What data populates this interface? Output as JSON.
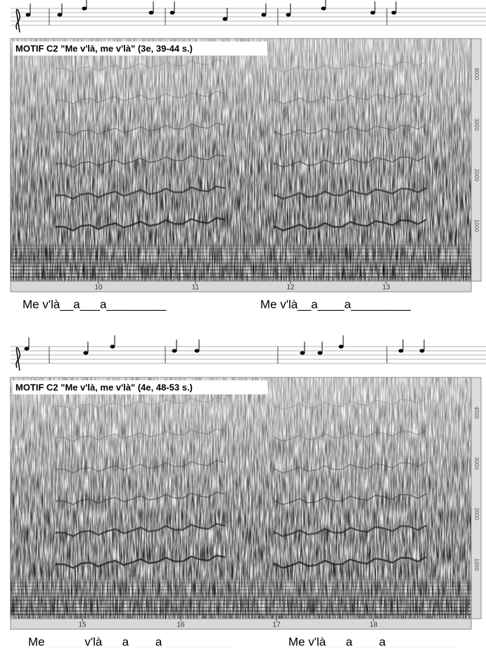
{
  "panels": [
    {
      "title": "MOTIF C2 \"Me v'là, me v'là\" (3e, 39-44 s.)",
      "time_ticks": [
        "10",
        "11",
        "12",
        "13"
      ],
      "freq_ticks": [
        "4000",
        "3000",
        "2000",
        "1000"
      ],
      "lyrics": [
        "Me v'là__a___a_________",
        "Me v'là__a____a_________"
      ]
    },
    {
      "title": "MOTIF C2 \"Me v'là, me v'là\" (4e, 48-53 s.)",
      "time_ticks": [
        "15",
        "16",
        "17",
        "18"
      ],
      "freq_ticks": [
        "4000",
        "3000",
        "2000",
        "1000"
      ],
      "lyrics": [
        "Me _____ v'là __ a ___ a __________",
        "Me v'là __ a ___ a __________"
      ]
    }
  ]
}
